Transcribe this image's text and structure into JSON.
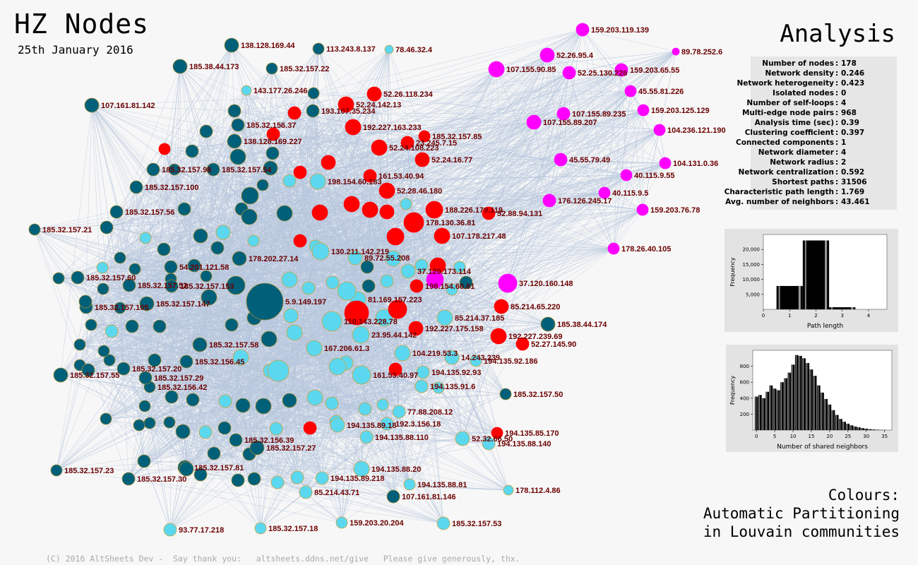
{
  "header": {
    "title": "HZ Nodes",
    "date": "25th January 2016"
  },
  "analysis": {
    "title": "Analysis",
    "stats": [
      {
        "name": "Number of nodes",
        "value": "178"
      },
      {
        "name": "Network density",
        "value": "0.246"
      },
      {
        "name": "Network heterogeneity",
        "value": "0.423"
      },
      {
        "name": "Isolated nodes",
        "value": "0"
      },
      {
        "name": "Number of self-loops",
        "value": "4"
      },
      {
        "name": "Multi-edge node pairs",
        "value": "968"
      },
      {
        "name": "Analysis time (sec)",
        "value": "0.39"
      },
      {
        "name": "Clustering coefficient",
        "value": "0.397"
      },
      {
        "name": "Connected components",
        "value": "1"
      },
      {
        "name": "Network diameter",
        "value": "4"
      },
      {
        "name": "Network radius",
        "value": "2"
      },
      {
        "name": "Network centralization",
        "value": "0.592"
      },
      {
        "name": "Shortest paths",
        "value": "31506"
      },
      {
        "name": "Characteristic path length",
        "value": "1.769"
      },
      {
        "name": "Avg. number of neighbors",
        "value": "43.461"
      }
    ]
  },
  "histograms": [
    {
      "id": "path-length",
      "xlabel": "Path length",
      "ylabel": "Frequency",
      "xticks": [
        "0",
        "1",
        "2",
        "3",
        "4"
      ],
      "yticks": [
        "5,000",
        "10,000",
        "15,000",
        "20,000"
      ],
      "xlim": [
        0,
        4.7
      ],
      "ylim": [
        0,
        25000
      ],
      "bars": [
        {
          "x": 1,
          "value": 7800
        },
        {
          "x": 2,
          "value": 23000
        },
        {
          "x": 3,
          "value": 700
        }
      ]
    },
    {
      "id": "shared-neighbors",
      "xlabel": "Number of shared neighbors",
      "ylabel": "Frequency",
      "xticks": [
        "0",
        "5",
        "10",
        "15",
        "20",
        "25",
        "30",
        "35"
      ],
      "yticks": [
        "200",
        "400",
        "600",
        "800"
      ],
      "xlim": [
        -1,
        37
      ],
      "ylim": [
        0,
        1000
      ],
      "values": [
        420,
        440,
        400,
        480,
        560,
        520,
        500,
        600,
        650,
        720,
        820,
        940,
        930,
        900,
        840,
        760,
        680,
        560,
        470,
        390,
        320,
        250,
        190,
        140,
        105,
        80,
        60,
        45,
        35,
        25,
        18,
        12,
        8,
        5,
        3,
        2
      ]
    }
  ],
  "legend": {
    "line1": "Colours:",
    "line2": "Automatic Partitioning",
    "line3": "in Louvain communities"
  },
  "footer": "(C) 2016 AltSheets Dev -  Say thank you:   altsheets.ddns.net/give   Please give generously, thx.",
  "colors": {
    "dark": "#00607a",
    "light": "#5bd8f0",
    "red": "#ff0000",
    "magenta": "#ff00ff",
    "edge": "#b5c6dc"
  },
  "nodes_labeled": [
    {
      "label": "159.203.119.139",
      "c": "magenta"
    },
    {
      "label": "89.78.252.6",
      "c": "magenta"
    },
    {
      "label": "52.26.95.4",
      "c": "magenta"
    },
    {
      "label": "107.155.90.85",
      "c": "magenta"
    },
    {
      "label": "52.25.130.226",
      "c": "magenta"
    },
    {
      "label": "159.203.65.55",
      "c": "magenta"
    },
    {
      "label": "45.55.81.226",
      "c": "magenta"
    },
    {
      "label": "159.203.125.129",
      "c": "magenta"
    },
    {
      "label": "107.155.89.235",
      "c": "magenta"
    },
    {
      "label": "107.155.89.207",
      "c": "magenta"
    },
    {
      "label": "104.236.121.190",
      "c": "magenta"
    },
    {
      "label": "45.55.79.49",
      "c": "magenta"
    },
    {
      "label": "104.131.0.36",
      "c": "magenta"
    },
    {
      "label": "40.115.9.55",
      "c": "magenta"
    },
    {
      "label": "40.115.9.5",
      "c": "magenta"
    },
    {
      "label": "176.126.245.17",
      "c": "magenta"
    },
    {
      "label": "159.203.76.78",
      "c": "magenta"
    },
    {
      "label": "178.26.40.105",
      "c": "magenta"
    },
    {
      "label": "37.120.160.148",
      "c": "magenta"
    },
    {
      "label": "138.128.169.44",
      "c": "dark"
    },
    {
      "label": "113.243.8.137",
      "c": "dark"
    },
    {
      "label": "78.46.32.4",
      "c": "light"
    },
    {
      "label": "185.38.44.173",
      "c": "dark"
    },
    {
      "label": "185.32.157.22",
      "c": "dark"
    },
    {
      "label": "143.177.26.246",
      "c": "light"
    },
    {
      "label": "107.161.81.142",
      "c": "dark"
    },
    {
      "label": "52.26.118.234",
      "c": "red"
    },
    {
      "label": "52.24.142.13",
      "c": "red"
    },
    {
      "label": "193.107.35.234",
      "c": "dark"
    },
    {
      "label": "185.32.156.37",
      "c": "dark"
    },
    {
      "label": "192.227.163.233",
      "c": "red"
    },
    {
      "label": "185.32.157.85",
      "c": "red"
    },
    {
      "label": "23.245.7.15",
      "c": "red"
    },
    {
      "label": "138.128.169.227",
      "c": "dark"
    },
    {
      "label": "52.24.108.223",
      "c": "red"
    },
    {
      "label": "52.24.16.77",
      "c": "red"
    },
    {
      "label": "185.32.157.98",
      "c": "dark"
    },
    {
      "label": "185.32.157.54",
      "c": "dark"
    },
    {
      "label": "198.154.60.183",
      "c": "light"
    },
    {
      "label": "161.53.40.94",
      "c": "red"
    },
    {
      "label": "52.28.46.180",
      "c": "red"
    },
    {
      "label": "185.32.157.100",
      "c": "dark"
    },
    {
      "label": "188.226.179.119",
      "c": "red"
    },
    {
      "label": "52.88.94.131",
      "c": "red"
    },
    {
      "label": "185.32.157.21",
      "c": "dark"
    },
    {
      "label": "185.32.157.56",
      "c": "dark"
    },
    {
      "label": "178.130.36.81",
      "c": "red"
    },
    {
      "label": "107.178.217.48",
      "c": "red"
    },
    {
      "label": "130.211.142.219",
      "c": "light"
    },
    {
      "label": "89.72.55.208",
      "c": "light"
    },
    {
      "label": "178.202.27.14",
      "c": "dark"
    },
    {
      "label": "54.201.121.58",
      "c": "dark"
    },
    {
      "label": "185.32.157.60",
      "c": "dark"
    },
    {
      "label": "185.32.157.52",
      "c": "dark"
    },
    {
      "label": "185.32.157.153",
      "c": "dark"
    },
    {
      "label": "185.32.157.147",
      "c": "dark"
    },
    {
      "label": "185.32.157.105",
      "c": "dark"
    },
    {
      "label": "5.9.149.197",
      "c": "dark"
    },
    {
      "label": "81.169.157.223",
      "c": "light"
    },
    {
      "label": "37.120.173.114",
      "c": "light"
    },
    {
      "label": "198.154.60.61",
      "c": "red"
    },
    {
      "label": "85.214.65.220",
      "c": "red"
    },
    {
      "label": "85.214.37.185",
      "c": "light"
    },
    {
      "label": "185.38.44.174",
      "c": "dark"
    },
    {
      "label": "192.227.175.158",
      "c": "red"
    },
    {
      "label": "192.227.239.69",
      "c": "red"
    },
    {
      "label": "52.27.145.90",
      "c": "red"
    },
    {
      "label": "110.143.228.78",
      "c": "light"
    },
    {
      "label": "185.32.157.58",
      "c": "dark"
    },
    {
      "label": "167.206.61.3",
      "c": "light"
    },
    {
      "label": "104.219.53.3",
      "c": "light"
    },
    {
      "label": "23.95.44.142",
      "c": "light"
    },
    {
      "label": "14.243.239",
      "c": "light"
    },
    {
      "label": "194.135.92.186",
      "c": "light"
    },
    {
      "label": "185.32.157.55",
      "c": "dark"
    },
    {
      "label": "185.32.157.20",
      "c": "dark"
    },
    {
      "label": "185.32.157.29",
      "c": "dark"
    },
    {
      "label": "185.32.156.42",
      "c": "dark"
    },
    {
      "label": "185.32.156.45",
      "c": "dark"
    },
    {
      "label": "161.53.40.97",
      "c": "light"
    },
    {
      "label": "194.135.92.93",
      "c": "light"
    },
    {
      "label": "194.135.91.6",
      "c": "light"
    },
    {
      "label": "185.32.157.50",
      "c": "dark"
    },
    {
      "label": "194.135.85.170",
      "c": "red"
    },
    {
      "label": "194.135.88.140",
      "c": "light"
    },
    {
      "label": "52.32.66.50",
      "c": "light"
    },
    {
      "label": "194.135.88.110",
      "c": "light"
    },
    {
      "label": "194.135.89.18",
      "c": "light"
    },
    {
      "label": "192.3.156.18",
      "c": "light"
    },
    {
      "label": "77.88.208.12",
      "c": "light"
    },
    {
      "label": "185.32.157.27",
      "c": "dark"
    },
    {
      "label": "185.32.156.39",
      "c": "dark"
    },
    {
      "label": "185.32.157.81",
      "c": "dark"
    },
    {
      "label": "185.32.157.23",
      "c": "dark"
    },
    {
      "label": "185.32.157.30",
      "c": "dark"
    },
    {
      "label": "194.135.88.20",
      "c": "light"
    },
    {
      "label": "194.135.89.218",
      "c": "light"
    },
    {
      "label": "194.135.88.81",
      "c": "light"
    },
    {
      "label": "178.112.4.86",
      "c": "light"
    },
    {
      "label": "85.214.43.71",
      "c": "light"
    },
    {
      "label": "107.161.81.146",
      "c": "dark"
    },
    {
      "label": "93.77.17.218",
      "c": "light"
    },
    {
      "label": "185.32.157.18",
      "c": "light"
    },
    {
      "label": "159.203.20.204",
      "c": "light"
    },
    {
      "label": "185.32.157.53",
      "c": "light"
    }
  ]
}
